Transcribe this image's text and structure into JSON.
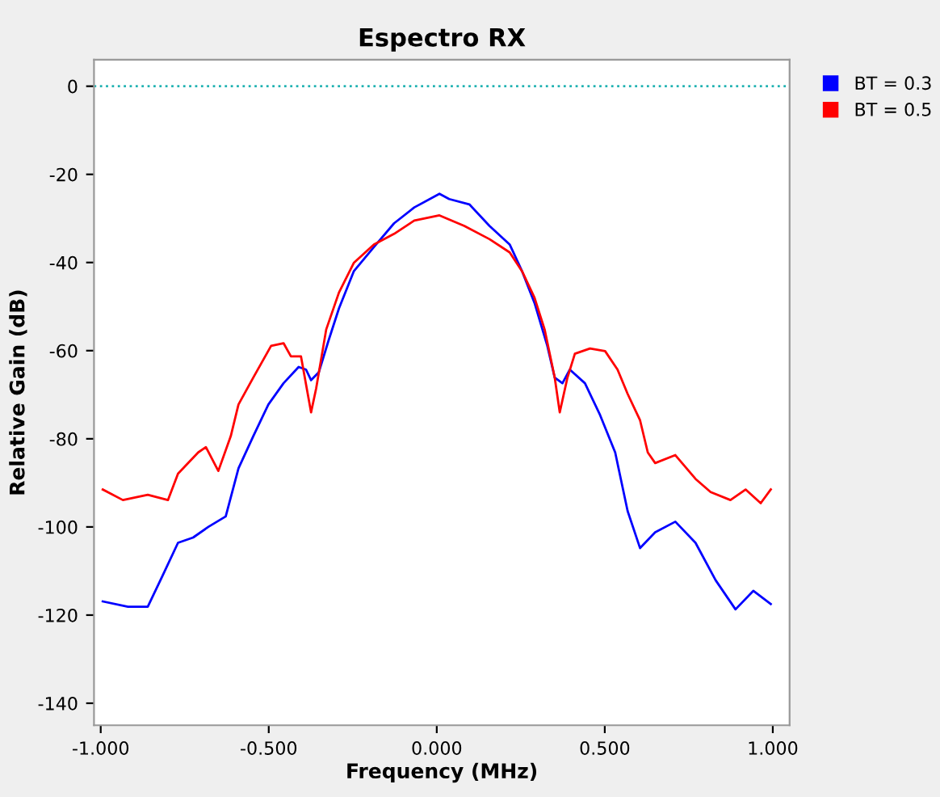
{
  "chart_data": {
    "type": "line",
    "title": "Espectro RX",
    "xlabel": "Frequency (MHz)",
    "ylabel": "Relative Gain (dB)",
    "xlim": [
      -1.02,
      1.05
    ],
    "ylim": [
      -145,
      6
    ],
    "xticks": [
      {
        "value": -1,
        "label": "-1.000"
      },
      {
        "value": -0.5,
        "label": "-0.500"
      },
      {
        "value": 0,
        "label": "0.000"
      },
      {
        "value": 0.5,
        "label": "0.500"
      },
      {
        "value": 1,
        "label": "1.000"
      }
    ],
    "yticks": [
      0,
      -20,
      -40,
      -60,
      -80,
      -100,
      -120,
      -140
    ],
    "grid": false,
    "legend": "right",
    "ref_lines": [
      {
        "axis": "y",
        "value": 0,
        "color": "#20b2b2",
        "line_style": "dotted"
      }
    ],
    "series": [
      {
        "name": "BT = 0.3",
        "color": "#0000ff",
        "x": [
          -0.994,
          -0.919,
          -0.86,
          -0.815,
          -0.77,
          -0.725,
          -0.68,
          -0.628,
          -0.59,
          -0.546,
          -0.501,
          -0.456,
          -0.411,
          -0.389,
          -0.374,
          -0.351,
          -0.322,
          -0.291,
          -0.247,
          -0.187,
          -0.127,
          -0.067,
          0.008,
          0.037,
          0.097,
          0.157,
          0.217,
          0.254,
          0.291,
          0.329,
          0.351,
          0.374,
          0.396,
          0.441,
          0.486,
          0.531,
          0.568,
          0.605,
          0.65,
          0.71,
          0.77,
          0.83,
          0.889,
          0.942,
          0.994
        ],
        "values": [
          -116.9,
          -118.1,
          -118.1,
          -110.9,
          -103.6,
          -102.4,
          -100.0,
          -97.6,
          -86.7,
          -79.4,
          -72.2,
          -67.4,
          -63.7,
          -64.3,
          -66.7,
          -64.9,
          -57.7,
          -50.4,
          -42.0,
          -36.5,
          -31.1,
          -27.5,
          -24.4,
          -25.6,
          -26.8,
          -31.7,
          -35.9,
          -42.0,
          -49.2,
          -58.9,
          -66.1,
          -67.4,
          -64.3,
          -67.4,
          -74.6,
          -83.1,
          -96.4,
          -104.8,
          -101.2,
          -98.8,
          -103.6,
          -112.1,
          -118.7,
          -114.5,
          -117.5
        ]
      },
      {
        "name": "BT = 0.5",
        "color": "#ff0000",
        "x": [
          -0.994,
          -0.934,
          -0.86,
          -0.8,
          -0.77,
          -0.71,
          -0.687,
          -0.65,
          -0.613,
          -0.59,
          -0.546,
          -0.493,
          -0.456,
          -0.434,
          -0.404,
          -0.374,
          -0.359,
          -0.329,
          -0.291,
          -0.247,
          -0.187,
          -0.127,
          -0.067,
          0.008,
          0.082,
          0.157,
          0.217,
          0.254,
          0.291,
          0.321,
          0.351,
          0.366,
          0.389,
          0.411,
          0.456,
          0.501,
          0.538,
          0.568,
          0.605,
          0.628,
          0.65,
          0.71,
          0.77,
          0.815,
          0.874,
          0.919,
          0.964,
          0.994
        ],
        "values": [
          -91.5,
          -93.9,
          -92.7,
          -93.9,
          -87.9,
          -83.1,
          -81.9,
          -87.3,
          -79.4,
          -72.2,
          -66.1,
          -58.9,
          -58.3,
          -61.3,
          -61.3,
          -74.0,
          -68.6,
          -55.2,
          -46.8,
          -40.1,
          -35.9,
          -33.5,
          -30.5,
          -29.3,
          -31.7,
          -34.7,
          -37.7,
          -42.0,
          -48.0,
          -55.2,
          -66.1,
          -74.0,
          -66.1,
          -60.7,
          -59.5,
          -60.1,
          -64.3,
          -69.8,
          -75.8,
          -83.1,
          -85.5,
          -83.7,
          -89.1,
          -92.1,
          -93.9,
          -91.5,
          -94.6,
          -91.5
        ]
      }
    ]
  }
}
